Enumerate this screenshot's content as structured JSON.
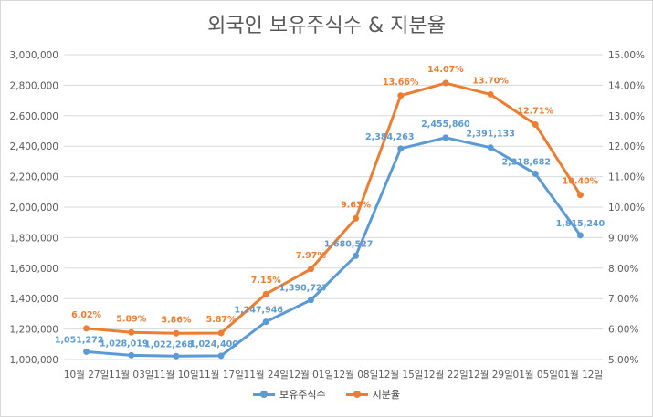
{
  "chart_data": {
    "type": "line",
    "title": "외국인 보유주식수 & 지분율",
    "categories": [
      "10월 27일",
      "11월 03일",
      "11월 10일",
      "11월 17일",
      "11월 24일",
      "12월 01일",
      "12월 08일",
      "12월 15일",
      "12월 22일",
      "12월 29일",
      "01월 05일",
      "01월 12일"
    ],
    "series": [
      {
        "name": "보유주식수",
        "axis": "left",
        "color": "#5b9bd5",
        "values": [
          1051272,
          1028019,
          1022268,
          1024400,
          1247946,
          1390727,
          1680527,
          2384263,
          2455860,
          2391133,
          2218682,
          1815240
        ],
        "labels": [
          "1,051,272",
          "1,028,019",
          "1,022,268",
          "1,024,400",
          "1,247,946",
          "1,390,727",
          "1,680,527",
          "2,384,263",
          "2,455,860",
          "2,391,133",
          "2,218,682",
          "1,815,240"
        ]
      },
      {
        "name": "지분율",
        "axis": "right",
        "color": "#ed7d31",
        "values": [
          6.02,
          5.89,
          5.86,
          5.87,
          7.15,
          7.97,
          9.63,
          13.66,
          14.07,
          13.7,
          12.71,
          10.4
        ],
        "labels": [
          "6.02%",
          "5.89%",
          "5.86%",
          "5.87%",
          "7.15%",
          "7.97%",
          "9.63%",
          "13.66%",
          "14.07%",
          "13.70%",
          "12.71%",
          "10.40%"
        ]
      }
    ],
    "y_left": {
      "min": 1000000,
      "max": 3000000,
      "step": 200000,
      "ticks": [
        "1,000,000",
        "1,200,000",
        "1,400,000",
        "1,600,000",
        "1,800,000",
        "2,000,000",
        "2,200,000",
        "2,400,000",
        "2,600,000",
        "2,800,000",
        "3,000,000"
      ]
    },
    "y_right": {
      "min": 5,
      "max": 15,
      "step": 1,
      "ticks": [
        "5.00%",
        "6.00%",
        "7.00%",
        "8.00%",
        "9.00%",
        "10.00%",
        "11.00%",
        "12.00%",
        "13.00%",
        "14.00%",
        "15.00%"
      ]
    },
    "grid": true,
    "legend_position": "bottom"
  }
}
